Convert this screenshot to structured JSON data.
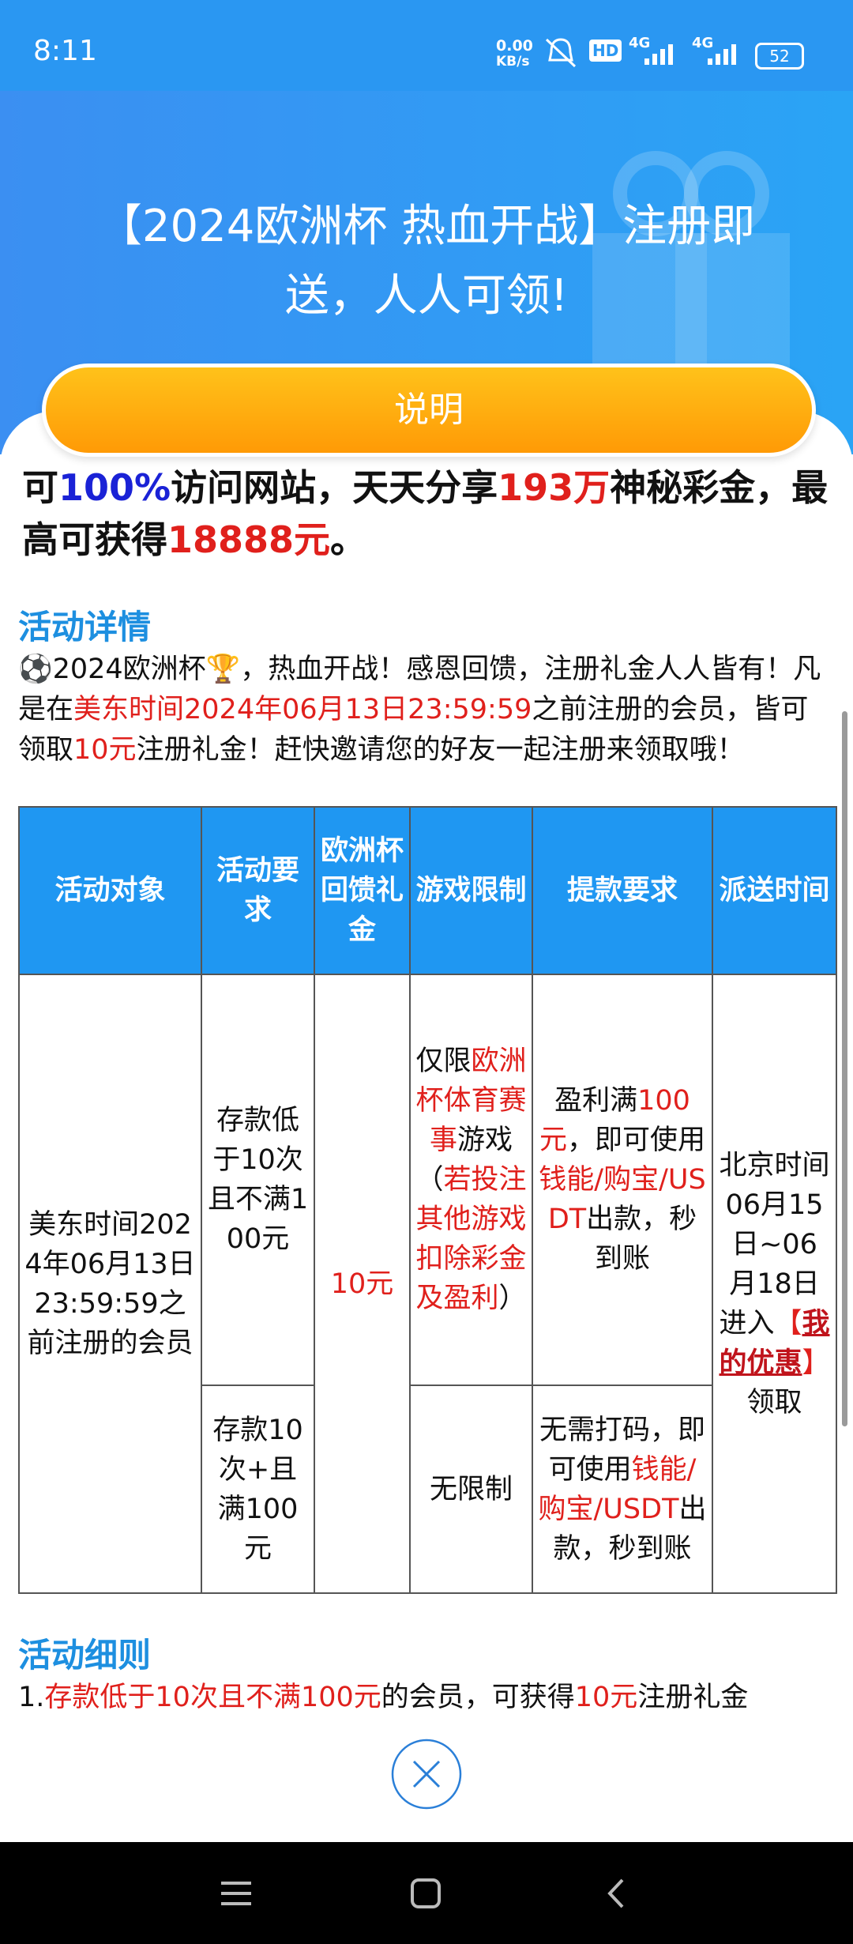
{
  "status_bar": {
    "time": "8:11",
    "net_speed": "0.00",
    "net_unit": "KB/s",
    "hd": "HD",
    "signal_1": "4G",
    "signal_2": "4G",
    "battery": "52"
  },
  "header": {
    "title": "【2024欧洲杯 热血开战】注册即送，人人可领!",
    "button": "说明"
  },
  "intro": [
    {
      "text": "可"
    },
    {
      "text": "100%",
      "color": "#1a22d6"
    },
    {
      "text": "访问网站，天天分享"
    },
    {
      "text": "193万",
      "color": "#e0201c"
    },
    {
      "text": "神秘彩金，最高可获得"
    },
    {
      "text": "18888元",
      "color": "#e0201c"
    },
    {
      "text": "。"
    }
  ],
  "details": {
    "heading": "活动详情",
    "paragraph": [
      {
        "text": "⚽2024欧洲杯🏆，热血开战！感恩回馈，注册礼金人人皆有！凡是在"
      },
      {
        "text": "美东时间2024年06月13日23:59:59",
        "color": "#e0201c"
      },
      {
        "text": "之前注册的会员，皆可领取"
      },
      {
        "text": "10元",
        "color": "#e0201c"
      },
      {
        "text": "注册礼金！赶快邀请您的好友一起注册来领取哦！"
      }
    ]
  },
  "table": {
    "headers": [
      "活动对象",
      "活动要求",
      "欧洲杯回馈礼金",
      "游戏限制",
      "提款要求",
      "派送时间"
    ],
    "rows": [
      [
        [
          {
            "text": "美东时间2024年06月13日23:59:59之前注册的会员"
          }
        ],
        [
          {
            "text": "存款低于10次且不满100元"
          }
        ],
        [
          {
            "text": "10元",
            "color": "#e0201c"
          }
        ],
        [
          {
            "text": "仅限"
          },
          {
            "text": "欧洲杯体育赛事",
            "color": "#e0201c"
          },
          {
            "text": "游戏（"
          },
          {
            "text": "若投注其他游戏扣除彩金及盈利",
            "color": "#e0201c"
          },
          {
            "text": "）"
          }
        ],
        [
          {
            "text": "盈利满"
          },
          {
            "text": "100元",
            "color": "#e0201c"
          },
          {
            "text": "，即可使用"
          },
          {
            "text": "钱能/购宝/USDT",
            "color": "#e0201c"
          },
          {
            "text": "出款，秒到账"
          }
        ],
        [
          {
            "text": "北京时间06月15日~06月18日进入"
          },
          {
            "text": "【",
            "color": "#e0201c"
          },
          {
            "text": "我的优惠",
            "color": "#c0141c",
            "link": true
          },
          {
            "text": "】",
            "color": "#e0201c"
          },
          {
            "text": "领取"
          }
        ]
      ],
      [
        [
          {
            "text": "存款10次+且满100元"
          }
        ],
        [
          {
            "text": "无限制"
          }
        ],
        [
          {
            "text": "无需打码，即可使用"
          },
          {
            "text": "钱能/购宝/USDT",
            "color": "#e0201c"
          },
          {
            "text": "出款，秒到账"
          }
        ]
      ]
    ]
  },
  "rules": {
    "heading": "活动细则",
    "line": [
      {
        "text": "1."
      },
      {
        "text": "存款低于10次且不满100元",
        "color": "#e0201c"
      },
      {
        "text": "的会员，可获得"
      },
      {
        "text": "10元",
        "color": "#e0201c"
      },
      {
        "text": "注册礼金"
      }
    ]
  }
}
